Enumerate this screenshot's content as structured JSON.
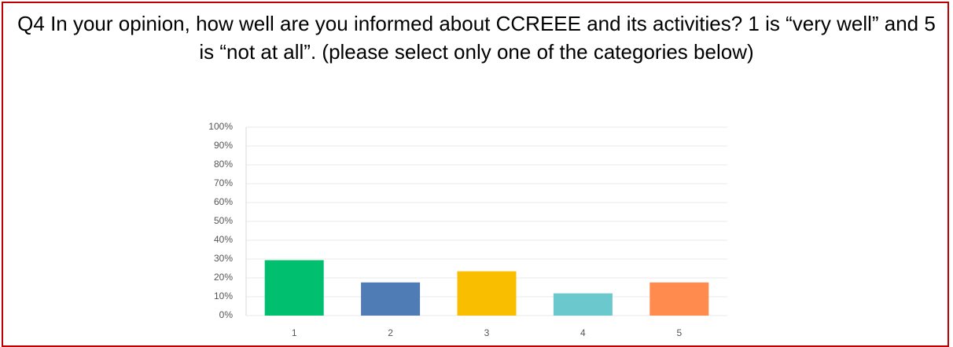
{
  "chart_data": {
    "type": "bar",
    "title": "Q4 In your opinion, how well are you informed about CCREEE and its activities? 1 is “very well” and 5 is “not at all”. (please select only one of the categories below)",
    "categories": [
      "1",
      "2",
      "3",
      "4",
      "5"
    ],
    "values": [
      29.4,
      17.6,
      23.5,
      11.8,
      17.6
    ],
    "colors": [
      "#00bf6f",
      "#507cb6",
      "#f9be00",
      "#6bc8cd",
      "#ff8b4f"
    ],
    "ylim": [
      0,
      100
    ],
    "yticks": [
      {
        "value": 0,
        "label": "0%"
      },
      {
        "value": 10,
        "label": "10%"
      },
      {
        "value": 20,
        "label": "20%"
      },
      {
        "value": 30,
        "label": "30%"
      },
      {
        "value": 40,
        "label": "40%"
      },
      {
        "value": 50,
        "label": "50%"
      },
      {
        "value": 60,
        "label": "60%"
      },
      {
        "value": 70,
        "label": "70%"
      },
      {
        "value": 80,
        "label": "80%"
      },
      {
        "value": 90,
        "label": "90%"
      },
      {
        "value": 100,
        "label": "100%"
      }
    ],
    "grid": true
  }
}
